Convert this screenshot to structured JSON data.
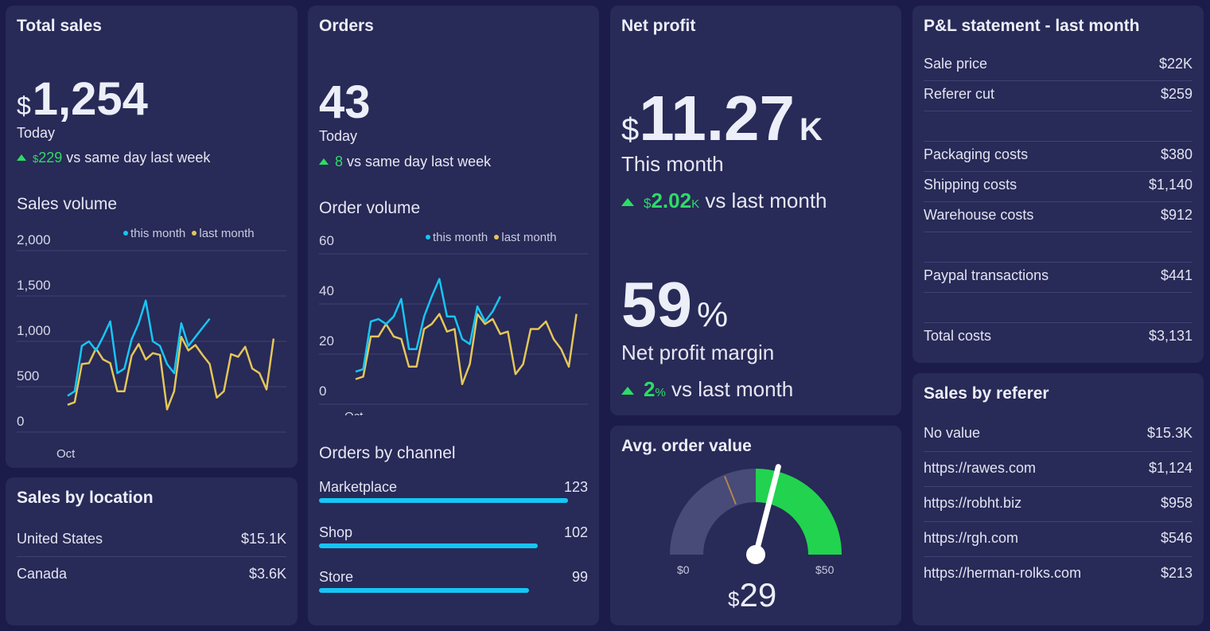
{
  "colors": {
    "background": "#1b1c4a",
    "card": "#282a57",
    "accent_blue": "#15c6f4",
    "accent_yellow": "#e4c659",
    "positive": "#2ddc66"
  },
  "total_sales": {
    "title": "Total sales",
    "currency": "$",
    "value": "1,254",
    "period": "Today",
    "delta_currency": "$",
    "delta": "229",
    "delta_text": "vs same day last week",
    "chart_title": "Sales volume",
    "legend": {
      "this_month": "this month",
      "last_month": "last month"
    }
  },
  "orders": {
    "title": "Orders",
    "value": "43",
    "period": "Today",
    "delta": "8",
    "delta_text": "vs same day last week",
    "chart_title": "Order volume",
    "legend": {
      "this_month": "this month",
      "last_month": "last month"
    },
    "channels_title": "Orders by channel",
    "channels": [
      {
        "name": "Marketplace",
        "value": "123",
        "fraction": 0.9
      },
      {
        "name": "Shop",
        "value": "102",
        "fraction": 0.79
      },
      {
        "name": "Store",
        "value": "99",
        "fraction": 0.76
      }
    ]
  },
  "net_profit": {
    "title": "Net profit",
    "currency": "$",
    "value": "11.27",
    "suffix": "K",
    "period": "This month",
    "delta_currency": "$",
    "delta": "2.02",
    "delta_suffix": "K",
    "delta_text": "vs last month",
    "margin_value": "59",
    "margin_suffix": "%",
    "margin_label": "Net profit margin",
    "margin_delta": "2",
    "margin_delta_suffix": "%",
    "margin_delta_text": "vs last month"
  },
  "aov": {
    "title": "Avg. order value",
    "min_label": "$0",
    "max_label": "$50",
    "currency": "$",
    "value": "29",
    "gauge_value": 29,
    "gauge_min": 0,
    "gauge_max": 50,
    "target": 19
  },
  "sales_by_location": {
    "title": "Sales by location",
    "rows": [
      {
        "name": "United States",
        "value": "$15.1K"
      },
      {
        "name": "Canada",
        "value": "$3.6K"
      }
    ]
  },
  "pl": {
    "title": "P&L statement - last month",
    "rows": [
      {
        "name": "Sale price",
        "value": "$22K"
      },
      {
        "name": "Referer cut",
        "value": "$259"
      },
      {
        "name": "",
        "value": ""
      },
      {
        "name": "Packaging costs",
        "value": "$380"
      },
      {
        "name": "Shipping costs",
        "value": "$1,140"
      },
      {
        "name": "Warehouse costs",
        "value": "$912"
      },
      {
        "name": "",
        "value": ""
      },
      {
        "name": "Paypal transactions",
        "value": "$441"
      },
      {
        "name": "",
        "value": ""
      },
      {
        "name": "Total costs",
        "value": "$3,131"
      }
    ]
  },
  "sales_by_referer": {
    "title": "Sales by referer",
    "rows": [
      {
        "name": "No value",
        "value": "$15.3K"
      },
      {
        "name": "https://rawes.com",
        "value": "$1,124"
      },
      {
        "name": "https://robht.biz",
        "value": "$958"
      },
      {
        "name": "https://rgh.com",
        "value": "$546"
      },
      {
        "name": "https://herman-rolks.com",
        "value": "$213"
      }
    ]
  },
  "chart_data": [
    {
      "type": "line",
      "name": "Sales volume",
      "x_tick_label": "Oct",
      "yticks": [
        0,
        500,
        1000,
        1500,
        2000
      ],
      "ylim": [
        0,
        2000
      ],
      "n_points": 29,
      "series": [
        {
          "name": "this month",
          "color": "#15c6f4",
          "values": [
            400,
            450,
            950,
            1000,
            900,
            1050,
            1220,
            650,
            700,
            1020,
            1200,
            1450,
            1000,
            950,
            750,
            650,
            1200,
            950,
            1050,
            1150,
            1250
          ]
        },
        {
          "name": "last month",
          "color": "#e4c659",
          "values": [
            300,
            330,
            750,
            760,
            920,
            800,
            760,
            450,
            450,
            840,
            970,
            800,
            870,
            850,
            250,
            450,
            1050,
            900,
            960,
            850,
            750,
            380,
            450,
            860,
            830,
            940,
            700,
            650,
            470,
            1030
          ]
        }
      ]
    },
    {
      "type": "line",
      "name": "Order volume",
      "x_tick_label": "Oct",
      "yticks": [
        0,
        20,
        40,
        60
      ],
      "ylim": [
        0,
        60
      ],
      "n_points": 29,
      "series": [
        {
          "name": "this month",
          "color": "#15c6f4",
          "values": [
            13,
            14,
            33,
            34,
            32,
            35,
            42,
            22,
            22,
            35,
            43,
            50,
            35,
            35,
            26,
            24,
            39,
            33,
            37,
            43
          ]
        },
        {
          "name": "last month",
          "color": "#e4c659",
          "values": [
            10,
            11,
            27,
            27,
            32,
            27,
            26,
            15,
            15,
            30,
            32,
            36,
            29,
            30,
            8,
            16,
            36,
            32,
            34,
            28,
            29,
            12,
            16,
            30,
            30,
            33,
            26,
            22,
            15,
            36
          ]
        }
      ]
    }
  ]
}
